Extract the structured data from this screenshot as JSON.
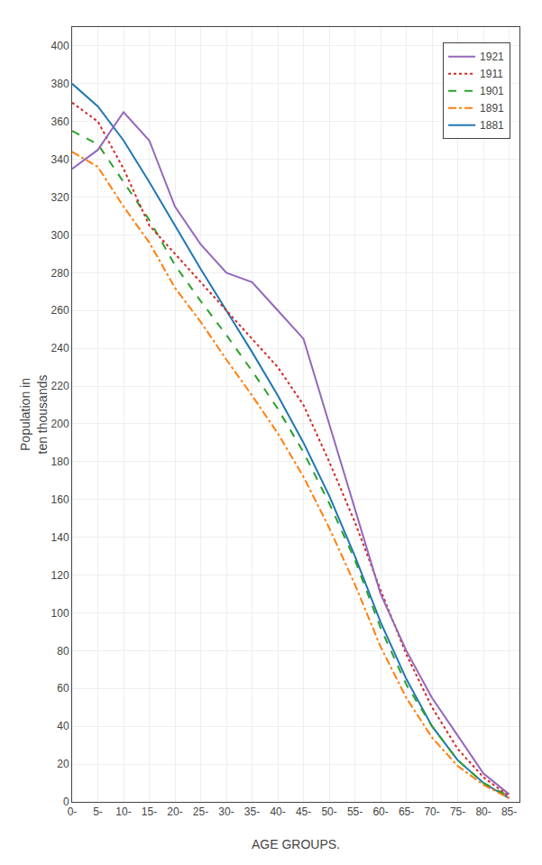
{
  "chart_data": {
    "type": "line",
    "x": [
      0,
      5,
      10,
      15,
      20,
      25,
      30,
      35,
      40,
      45,
      50,
      55,
      60,
      65,
      70,
      75,
      80,
      85
    ],
    "series": [
      {
        "name": "1881",
        "line_style": "solid",
        "values": [
          380,
          368,
          350,
          328,
          305,
          282,
          260,
          238,
          215,
          190,
          162,
          130,
          95,
          65,
          40,
          22,
          10,
          2
        ]
      },
      {
        "name": "1891",
        "line_style": "dashdot",
        "values": [
          344,
          336,
          315,
          296,
          272,
          254,
          234,
          215,
          195,
          172,
          145,
          115,
          82,
          55,
          34,
          19,
          9,
          2
        ]
      },
      {
        "name": "1901",
        "line_style": "dash",
        "values": [
          355,
          348,
          328,
          308,
          284,
          265,
          247,
          228,
          208,
          185,
          158,
          128,
          92,
          62,
          40,
          22,
          10,
          3
        ]
      },
      {
        "name": "1911",
        "line_style": "dot",
        "values": [
          370,
          360,
          335,
          305,
          290,
          275,
          260,
          245,
          230,
          210,
          180,
          148,
          112,
          78,
          50,
          28,
          13,
          3
        ]
      },
      {
        "name": "1921",
        "line_style": "solid",
        "values": [
          335,
          345,
          365,
          350,
          315,
          295,
          280,
          275,
          260,
          245,
          200,
          155,
          110,
          80,
          55,
          35,
          15,
          4
        ]
      }
    ],
    "x_label": "AGE GROUPS.",
    "y_label": "Population in\nten thousands",
    "xlim": [
      0,
      87
    ],
    "xticks": [
      {
        "value": 0,
        "label": "0-"
      },
      {
        "value": 5,
        "label": "5-"
      },
      {
        "value": 10,
        "label": "10-"
      },
      {
        "value": 15,
        "label": "15-"
      },
      {
        "value": 20,
        "label": "20-"
      },
      {
        "value": 25,
        "label": "25-"
      },
      {
        "value": 30,
        "label": "30-"
      },
      {
        "value": 35,
        "label": "35-"
      },
      {
        "value": 40,
        "label": "40-"
      },
      {
        "value": 45,
        "label": "45-"
      },
      {
        "value": 50,
        "label": "50-"
      },
      {
        "value": 55,
        "label": "55-"
      },
      {
        "value": 60,
        "label": "60-"
      },
      {
        "value": 65,
        "label": "65-"
      },
      {
        "value": 70,
        "label": "70-"
      },
      {
        "value": 75,
        "label": "75-"
      },
      {
        "value": 80,
        "label": "80-"
      },
      {
        "value": 85,
        "label": "85-"
      }
    ],
    "ylim": [
      0,
      410
    ],
    "yticks": [
      0,
      20,
      40,
      60,
      80,
      100,
      120,
      140,
      160,
      180,
      200,
      220,
      240,
      260,
      280,
      300,
      320,
      340,
      360,
      380,
      400
    ],
    "grid": true,
    "legend": "upper right"
  }
}
